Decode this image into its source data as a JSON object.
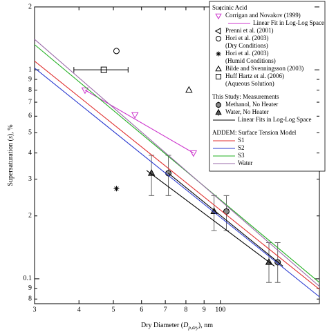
{
  "chart_data": {
    "type": "line",
    "x_label": [
      "Dry Diameter (",
      "D",
      "p,dry",
      "), nm"
    ],
    "y_label": [
      "Supersaturation (",
      "s",
      "), %"
    ],
    "x_log": true,
    "y_log": true,
    "xlim": [
      30,
      190
    ],
    "ylim": [
      0.076,
      2
    ],
    "xticks": [
      {
        "value": 30,
        "label": "3"
      },
      {
        "value": 40,
        "label": "4"
      },
      {
        "value": 50,
        "label": "5"
      },
      {
        "value": 60,
        "label": "6"
      },
      {
        "value": 70,
        "label": "7"
      },
      {
        "value": 80,
        "label": "8"
      },
      {
        "value": 90,
        "label": "9"
      },
      100
    ],
    "yticks": [
      2,
      1,
      {
        "value": 0.9,
        "label": "9"
      },
      {
        "value": 0.8,
        "label": "8"
      },
      {
        "value": 0.7,
        "label": "7"
      },
      {
        "value": 0.6,
        "label": "6"
      },
      {
        "value": 0.5,
        "label": "5"
      },
      {
        "value": 0.4,
        "label": "4"
      },
      {
        "value": 0.3,
        "label": "3"
      },
      {
        "value": 0.2,
        "label": "2"
      },
      0.1,
      {
        "value": 0.09,
        "label": "9"
      },
      {
        "value": 0.08,
        "label": "8"
      }
    ],
    "groups": [
      "Succinic Acid",
      "This Study: Measurements",
      "ADDEM: Surface Tension Model"
    ],
    "series": [
      {
        "name": [
          "Corrigan and Novakov (1999)"
        ],
        "group": 0,
        "marker": "tri-down",
        "color": "#cc33cc",
        "x": [
          41.6,
          57.5,
          84
        ],
        "values": [
          0.8,
          0.61,
          0.4
        ]
      },
      {
        "name": [
          "Linear Fit in Log-Log Space"
        ],
        "group": 0,
        "line": true,
        "color": "#cc33cc",
        "x": [
          41.6,
          84
        ],
        "values": [
          0.8,
          0.4
        ]
      },
      {
        "name": [
          "Prenni et al. (2001)"
        ],
        "group": 0,
        "marker": "tri-left",
        "color": "#000000",
        "x": [],
        "values": []
      },
      {
        "name": [
          "Hori et al. (2003)",
          "(Dry Conditions)"
        ],
        "group": 0,
        "marker": "circle",
        "color": "#000000",
        "x": [
          51
        ],
        "values": [
          1.23
        ]
      },
      {
        "name": [
          "Hori et al. (2003)",
          "(Humid Conditions)"
        ],
        "group": 0,
        "marker": "star",
        "color": "#000000",
        "x": [
          51
        ],
        "values": [
          0.27
        ]
      },
      {
        "name": [
          "Bilde and Svenningsson (2003)"
        ],
        "group": 0,
        "marker": "tri-up",
        "color": "#000000",
        "x": [
          81.6
        ],
        "values": [
          0.8
        ]
      },
      {
        "name": [
          "Huff Hartz et al. (2006)",
          "(Aqueous Solution)"
        ],
        "group": 0,
        "marker": "square",
        "color": "#000000",
        "x": [
          47
        ],
        "values": [
          1.0
        ],
        "x_err_low": [
          38.7
        ],
        "x_err_high": [
          55
        ]
      },
      {
        "name": [
          "Methanol, No Heater"
        ],
        "group": 1,
        "marker": "circle",
        "fill": "#888888",
        "color": "#000000",
        "x": [
          71.4,
          104,
          145
        ],
        "values": [
          0.32,
          0.21,
          0.12
        ],
        "err_low": [
          0.25,
          0.17,
          0.096
        ],
        "err_high": [
          0.39,
          0.25,
          0.149
        ]
      },
      {
        "name": [
          "Water, No Heater"
        ],
        "group": 1,
        "marker": "tri-up",
        "fill": "#555555",
        "color": "#000000",
        "x": [
          64,
          96,
          137
        ],
        "values": [
          0.32,
          0.21,
          0.12
        ],
        "err_low": [
          0.25,
          0.17,
          0.096
        ],
        "err_high": [
          0.39,
          0.25,
          0.149
        ]
      },
      {
        "name": [
          "Linear Fits in Log-Log Space"
        ],
        "group": 1,
        "line": true,
        "color": "#000000",
        "x": [
          71.4,
          150,
          null,
          62,
          142
        ],
        "values": [
          0.32,
          0.115,
          null,
          0.33,
          0.115
        ]
      },
      {
        "name": [
          "S1"
        ],
        "group": 2,
        "line": true,
        "color": "#e03030",
        "x": [
          30,
          190
        ],
        "values": [
          1.1,
          0.089
        ]
      },
      {
        "name": [
          "S2"
        ],
        "group": 2,
        "line": true,
        "color": "#2a3ad0",
        "x": [
          30,
          190
        ],
        "values": [
          1.02,
          0.082
        ]
      },
      {
        "name": [
          "S3"
        ],
        "group": 2,
        "line": true,
        "color": "#22b022",
        "x": [
          30,
          190
        ],
        "values": [
          1.32,
          0.096
        ]
      },
      {
        "name": [
          "Water"
        ],
        "group": 2,
        "line": true,
        "color": "#9a6aa8",
        "x": [
          30,
          190
        ],
        "values": [
          1.4,
          0.092
        ]
      }
    ]
  }
}
